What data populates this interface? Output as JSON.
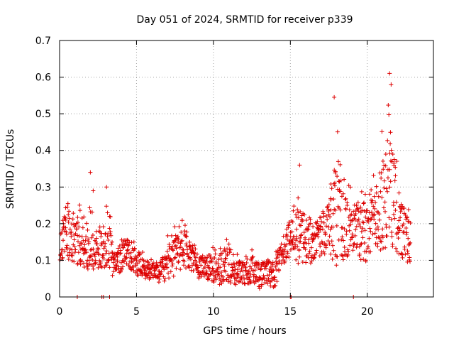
{
  "chart_data": {
    "type": "scatter",
    "title": "Day 051 of 2024, SRMTID for receiver p339",
    "xlabel": "GPS time / hours",
    "ylabel": "SRMTID / TECUs",
    "xlim": [
      0,
      24.3
    ],
    "ylim": [
      0,
      0.7
    ],
    "x_ticks": [
      0,
      5,
      10,
      15,
      20
    ],
    "y_ticks": [
      0,
      0.1,
      0.2,
      0.3,
      0.4,
      0.5,
      0.6,
      0.7
    ],
    "y_tick_labels": [
      "0",
      "0.1",
      "0.2",
      "0.3",
      "0.4",
      "0.5",
      "0.6",
      "0.7"
    ],
    "grid": true,
    "marker": "+",
    "series_color": "#dd0000",
    "sampling_interval_hours": 0.05,
    "envelope": {
      "description": "median and approximate scatter range of SRMTID vs GPS time",
      "hours": [
        0.0,
        0.5,
        1.0,
        1.5,
        2.0,
        2.5,
        3.0,
        3.3,
        3.5,
        4.0,
        4.5,
        5.0,
        5.5,
        6.0,
        6.5,
        7.0,
        7.5,
        8.0,
        8.5,
        9.0,
        9.5,
        10.0,
        10.5,
        11.0,
        11.5,
        12.0,
        12.5,
        13.0,
        13.5,
        14.0,
        14.5,
        15.0,
        15.5,
        16.0,
        16.5,
        17.0,
        17.5,
        18.0,
        18.5,
        19.0,
        19.5,
        20.0,
        20.5,
        21.0,
        21.5,
        22.0,
        22.5,
        22.8
      ],
      "median": [
        0.15,
        0.18,
        0.16,
        0.15,
        0.14,
        0.13,
        0.12,
        0.14,
        0.09,
        0.12,
        0.12,
        0.1,
        0.08,
        0.07,
        0.07,
        0.09,
        0.12,
        0.13,
        0.12,
        0.1,
        0.09,
        0.08,
        0.08,
        0.09,
        0.07,
        0.07,
        0.08,
        0.06,
        0.07,
        0.06,
        0.13,
        0.17,
        0.18,
        0.16,
        0.16,
        0.17,
        0.2,
        0.18,
        0.18,
        0.19,
        0.2,
        0.2,
        0.21,
        0.23,
        0.26,
        0.22,
        0.17,
        0.16
      ],
      "low": [
        0.1,
        0.1,
        0.09,
        0.08,
        0.07,
        0.07,
        0.08,
        0.08,
        0.05,
        0.07,
        0.08,
        0.06,
        0.05,
        0.04,
        0.04,
        0.04,
        0.06,
        0.08,
        0.07,
        0.05,
        0.05,
        0.04,
        0.03,
        0.04,
        0.03,
        0.03,
        0.04,
        0.02,
        0.03,
        0.02,
        0.09,
        0.1,
        0.09,
        0.09,
        0.09,
        0.11,
        0.12,
        0.08,
        0.1,
        0.11,
        0.1,
        0.09,
        0.12,
        0.12,
        0.14,
        0.11,
        0.1,
        0.08
      ],
      "high": [
        0.22,
        0.3,
        0.26,
        0.28,
        0.34,
        0.25,
        0.3,
        0.23,
        0.13,
        0.18,
        0.18,
        0.15,
        0.12,
        0.11,
        0.11,
        0.17,
        0.2,
        0.23,
        0.19,
        0.14,
        0.13,
        0.14,
        0.15,
        0.19,
        0.12,
        0.12,
        0.14,
        0.11,
        0.12,
        0.13,
        0.19,
        0.26,
        0.36,
        0.28,
        0.24,
        0.26,
        0.3,
        0.55,
        0.33,
        0.31,
        0.33,
        0.27,
        0.35,
        0.48,
        0.61,
        0.35,
        0.27,
        0.25
      ]
    },
    "zero_points_hours": [
      1.15,
      2.75,
      2.85,
      3.25,
      15.0,
      15.05,
      19.1
    ],
    "notable_peaks": [
      {
        "x": 2.0,
        "y": 0.34
      },
      {
        "x": 3.05,
        "y": 0.3
      },
      {
        "x": 15.6,
        "y": 0.36
      },
      {
        "x": 17.85,
        "y": 0.545
      },
      {
        "x": 21.45,
        "y": 0.61
      },
      {
        "x": 21.55,
        "y": 0.58
      }
    ]
  }
}
